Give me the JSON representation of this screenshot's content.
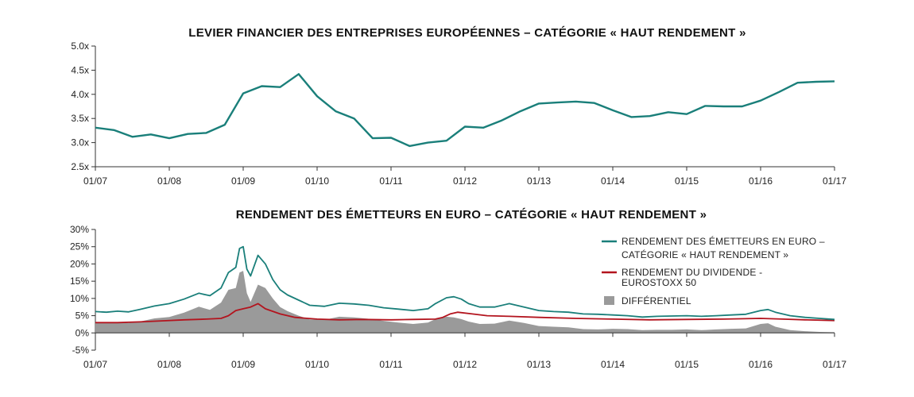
{
  "chart_data": [
    {
      "type": "line",
      "title": "LEVIER FINANCIER DES ENTREPRISES EUROPÉENNES – CATÉGORIE « HAUT RENDEMENT »",
      "xlabel": "",
      "ylabel": "",
      "x_ticks": [
        "01/07",
        "01/08",
        "01/09",
        "01/10",
        "01/11",
        "01/12",
        "01/13",
        "01/14",
        "01/15",
        "01/16",
        "01/17"
      ],
      "x_range": [
        0,
        10
      ],
      "y_ticks": [
        "2.5x",
        "3.0x",
        "3.5x",
        "4.0x",
        "4.5x",
        "5.0x"
      ],
      "ylim": [
        2.5,
        5.0
      ],
      "color": "#1a7f7a",
      "series": [
        {
          "name": "Levier financier",
          "x": [
            0,
            0.25,
            0.5,
            0.75,
            1,
            1.25,
            1.5,
            1.75,
            2,
            2.25,
            2.5,
            2.75,
            3,
            3.25,
            3.5,
            3.75,
            4,
            4.25,
            4.5,
            4.75,
            5,
            5.25,
            5.5,
            5.75,
            6,
            6.25,
            6.5,
            6.75,
            7,
            7.25,
            7.5,
            7.75,
            8,
            8.25,
            8.5,
            8.75,
            9,
            9.25,
            9.5,
            9.75,
            10
          ],
          "values": [
            3.31,
            3.26,
            3.12,
            3.17,
            3.09,
            3.18,
            3.2,
            3.37,
            4.02,
            4.17,
            4.15,
            4.42,
            3.96,
            3.65,
            3.5,
            3.09,
            3.1,
            2.93,
            3.0,
            3.04,
            3.33,
            3.31,
            3.46,
            3.65,
            3.81,
            3.83,
            3.85,
            3.82,
            3.67,
            3.53,
            3.55,
            3.63,
            3.59,
            3.76,
            3.75,
            3.75,
            3.87,
            4.05,
            4.24,
            4.26,
            4.27
          ]
        }
      ]
    },
    {
      "type": "line",
      "title": "RENDEMENT DES ÉMETTEURS EN EURO – CATÉGORIE « HAUT RENDEMENT »",
      "xlabel": "",
      "ylabel": "",
      "x_ticks": [
        "01/07",
        "01/08",
        "01/09",
        "01/10",
        "01/11",
        "01/12",
        "01/13",
        "01/14",
        "01/15",
        "01/16",
        "01/17"
      ],
      "x_range": [
        0,
        10
      ],
      "y_ticks": [
        "-5%",
        "0%",
        "5%",
        "10%",
        "15%",
        "20%",
        "25%",
        "30%"
      ],
      "ylim": [
        -5,
        30
      ],
      "legend_position": "top-right",
      "series": [
        {
          "name": "RENDEMENT DES ÉMETTEURS EN EURO –",
          "name_line2": "CATÉGORIE « HAUT RENDEMENT »",
          "color": "#1a7f7a",
          "x": [
            0,
            0.15,
            0.3,
            0.45,
            0.6,
            0.8,
            1.0,
            1.2,
            1.4,
            1.55,
            1.7,
            1.8,
            1.9,
            1.95,
            2.0,
            2.05,
            2.1,
            2.2,
            2.3,
            2.4,
            2.5,
            2.6,
            2.75,
            2.9,
            3.1,
            3.3,
            3.5,
            3.7,
            3.9,
            4.1,
            4.3,
            4.5,
            4.6,
            4.75,
            4.85,
            4.95,
            5.05,
            5.2,
            5.4,
            5.6,
            5.8,
            6.0,
            6.2,
            6.4,
            6.6,
            6.8,
            7.0,
            7.2,
            7.4,
            7.6,
            7.8,
            8.0,
            8.2,
            8.4,
            8.6,
            8.8,
            9.0,
            9.1,
            9.2,
            9.4,
            9.6,
            9.8,
            10.0
          ],
          "values": [
            6.2,
            6.0,
            6.3,
            6.1,
            6.8,
            7.8,
            8.5,
            9.8,
            11.5,
            10.8,
            13.0,
            17.5,
            19.0,
            24.5,
            25.0,
            18.5,
            16.5,
            22.5,
            20.0,
            15.5,
            12.5,
            11.0,
            9.5,
            8.0,
            7.7,
            8.6,
            8.4,
            8.0,
            7.3,
            6.9,
            6.5,
            7.0,
            8.5,
            10.2,
            10.5,
            9.8,
            8.5,
            7.5,
            7.5,
            8.5,
            7.5,
            6.5,
            6.2,
            6.0,
            5.5,
            5.4,
            5.2,
            5.0,
            4.6,
            4.8,
            4.9,
            5.0,
            4.8,
            5.0,
            5.2,
            5.4,
            6.5,
            6.8,
            6.0,
            5.0,
            4.5,
            4.2,
            3.9
          ]
        },
        {
          "name": "RENDEMENT DU DIVIDENDE -",
          "name_line2": "EUROSTOXX 50",
          "color": "#b3141e",
          "x": [
            0,
            0.3,
            0.6,
            0.9,
            1.2,
            1.5,
            1.7,
            1.8,
            1.9,
            2.0,
            2.1,
            2.2,
            2.3,
            2.5,
            2.7,
            3.0,
            3.3,
            3.6,
            4.0,
            4.3,
            4.6,
            4.7,
            4.8,
            4.9,
            5.1,
            5.3,
            5.6,
            6.0,
            6.5,
            7.0,
            7.5,
            8.0,
            8.5,
            9.0,
            9.3,
            9.6,
            10.0
          ],
          "values": [
            3.0,
            3.0,
            3.2,
            3.5,
            3.8,
            4.0,
            4.2,
            5.0,
            6.5,
            7.0,
            7.5,
            8.5,
            7.0,
            5.5,
            4.5,
            4.0,
            3.8,
            3.9,
            3.8,
            3.9,
            4.0,
            4.5,
            5.5,
            6.0,
            5.5,
            5.0,
            4.8,
            4.5,
            4.2,
            4.0,
            3.8,
            3.9,
            4.0,
            4.2,
            4.0,
            3.8,
            3.6
          ]
        },
        {
          "name": "DIFFÉRENTIEL",
          "kind": "area",
          "color": "#9a9a9a",
          "x": [
            0,
            0.15,
            0.3,
            0.45,
            0.6,
            0.8,
            1.0,
            1.2,
            1.4,
            1.55,
            1.7,
            1.8,
            1.9,
            1.95,
            2.0,
            2.05,
            2.1,
            2.2,
            2.3,
            2.4,
            2.5,
            2.6,
            2.75,
            2.9,
            3.1,
            3.3,
            3.5,
            3.7,
            3.9,
            4.1,
            4.3,
            4.5,
            4.6,
            4.75,
            4.85,
            4.95,
            5.05,
            5.2,
            5.4,
            5.6,
            5.8,
            6.0,
            6.2,
            6.4,
            6.6,
            6.8,
            7.0,
            7.2,
            7.4,
            7.6,
            7.8,
            8.0,
            8.2,
            8.4,
            8.6,
            8.8,
            9.0,
            9.1,
            9.2,
            9.4,
            9.6,
            9.8,
            10.0
          ],
          "values": [
            3.2,
            3.0,
            3.1,
            2.9,
            3.3,
            4.2,
            4.6,
            5.9,
            7.6,
            6.7,
            8.8,
            12.5,
            13.0,
            17.5,
            18.0,
            11.5,
            9.0,
            14.0,
            13.0,
            10.0,
            7.5,
            6.3,
            5.0,
            3.9,
            3.8,
            4.7,
            4.5,
            4.1,
            3.5,
            3.0,
            2.6,
            3.0,
            4.0,
            4.7,
            4.5,
            4.0,
            3.3,
            2.6,
            2.7,
            3.6,
            2.9,
            2.0,
            1.8,
            1.6,
            1.1,
            1.0,
            1.2,
            1.1,
            0.8,
            0.9,
            0.9,
            1.0,
            0.8,
            1.0,
            1.2,
            1.3,
            2.6,
            2.8,
            1.8,
            0.8,
            0.5,
            0.3,
            0.2
          ]
        }
      ]
    }
  ]
}
